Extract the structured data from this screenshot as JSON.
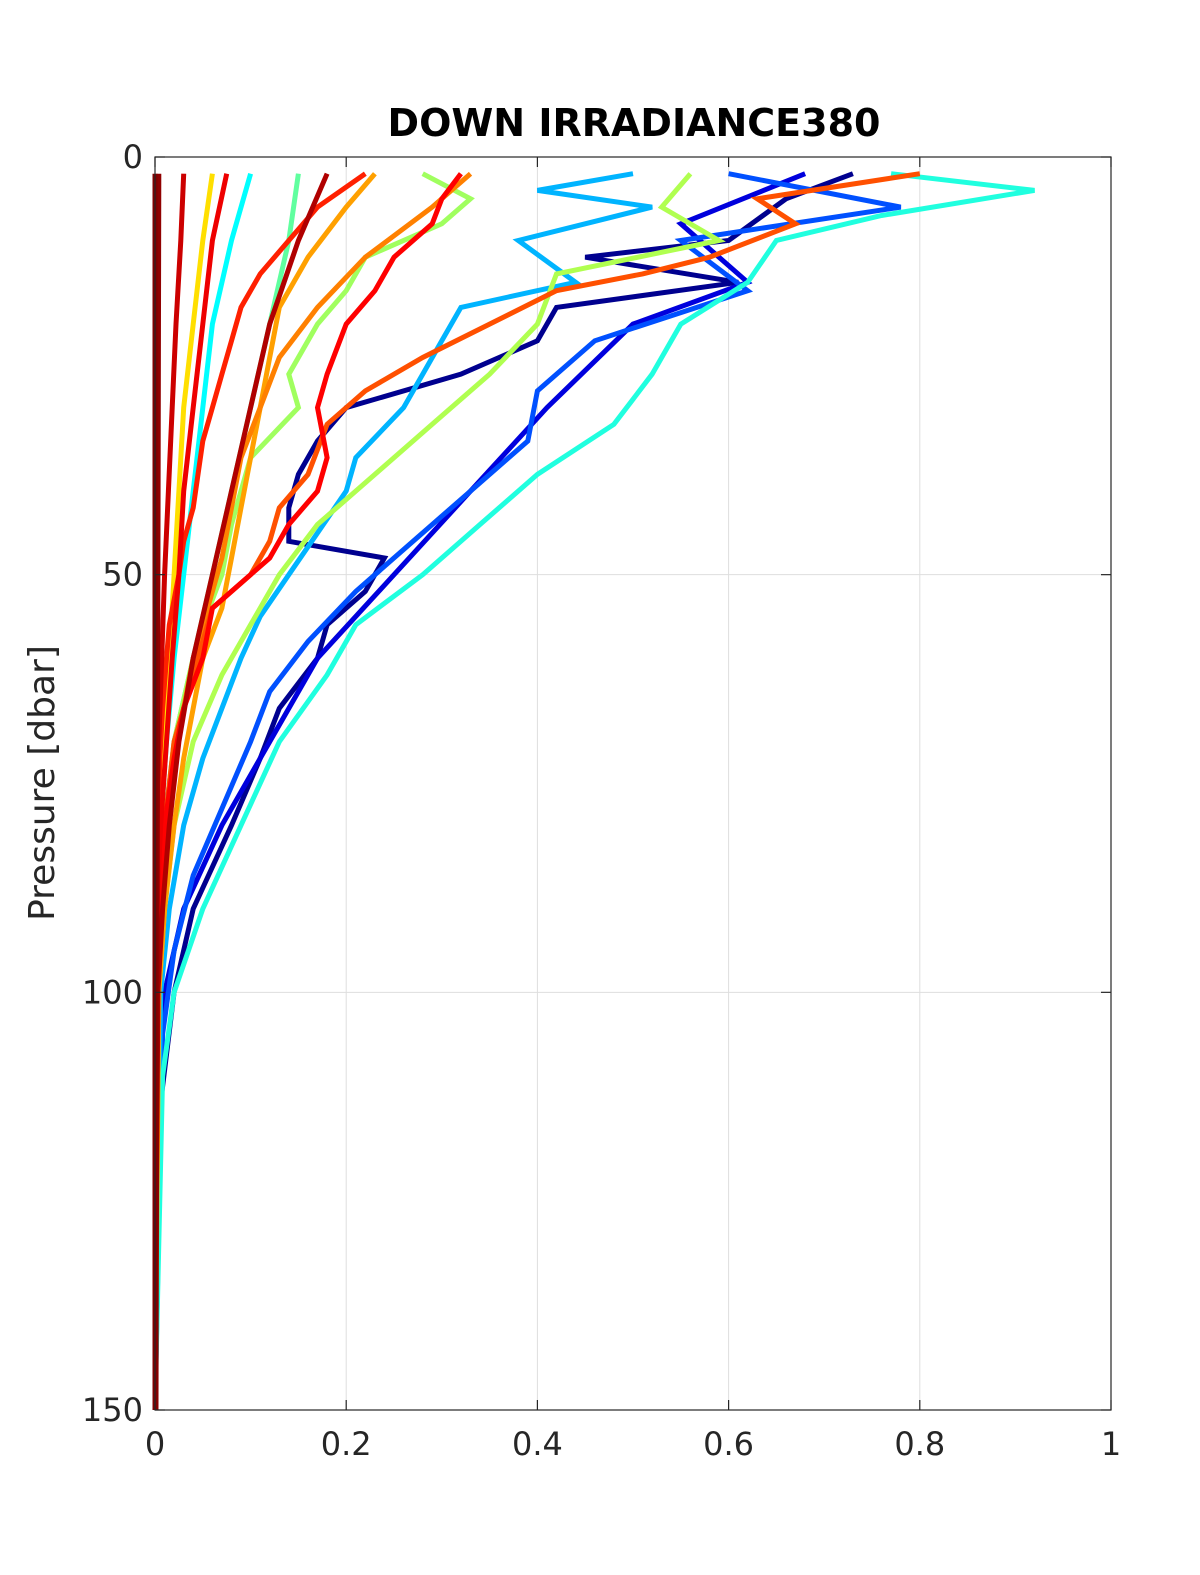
{
  "chart_data": {
    "type": "line",
    "title": "DOWN IRRADIANCE380",
    "xlabel": "",
    "ylabel": "Pressure [dbar]",
    "xlim": [
      0,
      1
    ],
    "ylim": [
      0,
      150
    ],
    "y_reversed": true,
    "grid": true,
    "xticks": [
      0,
      0.2,
      0.4,
      0.6,
      0.8,
      1
    ],
    "xtick_labels": [
      "0",
      "0.2",
      "0.4",
      "0.6",
      "0.8",
      "1"
    ],
    "yticks": [
      0,
      50,
      100,
      150
    ],
    "ytick_labels": [
      "0",
      "50",
      "100",
      "150"
    ],
    "series": [
      {
        "color": "#00008f",
        "p": [
          2,
          5,
          10,
          12,
          15,
          18,
          22,
          26,
          30,
          34,
          38,
          42,
          46,
          48,
          52,
          56,
          60,
          66,
          72,
          80,
          90,
          100,
          115,
          150
        ],
        "v": [
          0.73,
          0.66,
          0.6,
          0.45,
          0.61,
          0.42,
          0.4,
          0.32,
          0.2,
          0.17,
          0.15,
          0.14,
          0.14,
          0.24,
          0.22,
          0.18,
          0.17,
          0.13,
          0.11,
          0.08,
          0.04,
          0.02,
          0.004,
          0.0
        ]
      },
      {
        "color": "#0000dd",
        "p": [
          2,
          8,
          15,
          20,
          30,
          40,
          50,
          60,
          70,
          80,
          90,
          100,
          110,
          150
        ],
        "v": [
          0.68,
          0.55,
          0.62,
          0.5,
          0.41,
          0.33,
          0.25,
          0.17,
          0.12,
          0.07,
          0.03,
          0.01,
          0.004,
          0.0
        ]
      },
      {
        "color": "#0050ff",
        "p": [
          2,
          6,
          10,
          16,
          22,
          28,
          34,
          40,
          46,
          52,
          58,
          64,
          70,
          78,
          86,
          95,
          105,
          150
        ],
        "v": [
          0.6,
          0.78,
          0.55,
          0.62,
          0.46,
          0.4,
          0.39,
          0.33,
          0.27,
          0.21,
          0.16,
          0.12,
          0.1,
          0.07,
          0.04,
          0.02,
          0.008,
          0.0
        ]
      },
      {
        "color": "#00b4ff",
        "p": [
          2,
          4,
          6,
          10,
          15,
          18,
          22,
          26,
          30,
          36,
          40,
          45,
          50,
          55,
          60,
          66,
          72,
          80,
          90,
          100,
          150
        ],
        "v": [
          0.5,
          0.4,
          0.52,
          0.38,
          0.44,
          0.32,
          0.3,
          0.28,
          0.26,
          0.21,
          0.2,
          0.17,
          0.14,
          0.11,
          0.09,
          0.07,
          0.05,
          0.03,
          0.015,
          0.006,
          0.0
        ]
      },
      {
        "color": "#20ffdf",
        "p": [
          2,
          4,
          7,
          10,
          15,
          20,
          26,
          32,
          38,
          44,
          50,
          56,
          62,
          70,
          80,
          90,
          100,
          110,
          150
        ],
        "v": [
          0.77,
          0.92,
          0.76,
          0.65,
          0.62,
          0.55,
          0.52,
          0.48,
          0.4,
          0.34,
          0.28,
          0.21,
          0.18,
          0.13,
          0.09,
          0.05,
          0.02,
          0.008,
          0.0
        ]
      },
      {
        "color": "#00ffff",
        "p": [
          2,
          10,
          20,
          30,
          40,
          50,
          60,
          70,
          80,
          90,
          100,
          150
        ],
        "v": [
          0.1,
          0.08,
          0.06,
          0.05,
          0.04,
          0.03,
          0.02,
          0.012,
          0.006,
          0.003,
          0.001,
          0.0
        ]
      },
      {
        "color": "#60ff9f",
        "p": [
          2,
          10,
          20,
          30,
          40,
          50,
          60,
          70,
          80,
          90,
          100,
          150
        ],
        "v": [
          0.15,
          0.14,
          0.12,
          0.1,
          0.08,
          0.06,
          0.04,
          0.02,
          0.01,
          0.005,
          0.002,
          0.0
        ]
      },
      {
        "color": "#a0ff5f",
        "p": [
          2,
          5,
          8,
          12,
          16,
          20,
          26,
          30,
          36,
          40,
          44,
          50,
          56,
          60,
          70,
          80,
          90,
          100,
          150
        ],
        "v": [
          0.28,
          0.33,
          0.3,
          0.22,
          0.2,
          0.17,
          0.14,
          0.15,
          0.1,
          0.09,
          0.08,
          0.07,
          0.05,
          0.04,
          0.02,
          0.01,
          0.005,
          0.002,
          0.0
        ]
      },
      {
        "color": "#b0ff50",
        "p": [
          2,
          6,
          10,
          14,
          20,
          26,
          32,
          38,
          44,
          50,
          56,
          62,
          70,
          80,
          90,
          100,
          150
        ],
        "v": [
          0.56,
          0.53,
          0.59,
          0.42,
          0.4,
          0.35,
          0.29,
          0.23,
          0.17,
          0.13,
          0.1,
          0.07,
          0.04,
          0.02,
          0.01,
          0.004,
          0.0
        ]
      },
      {
        "color": "#ffdf00",
        "p": [
          2,
          10,
          20,
          30,
          40,
          50,
          60,
          70,
          80,
          90,
          150
        ],
        "v": [
          0.06,
          0.05,
          0.04,
          0.03,
          0.025,
          0.02,
          0.015,
          0.01,
          0.005,
          0.002,
          0.0
        ]
      },
      {
        "color": "#ffa000",
        "p": [
          2,
          6,
          12,
          18,
          24,
          30,
          36,
          42,
          48,
          54,
          60,
          66,
          72,
          80,
          90,
          100,
          150
        ],
        "v": [
          0.23,
          0.2,
          0.16,
          0.13,
          0.12,
          0.11,
          0.1,
          0.09,
          0.08,
          0.07,
          0.05,
          0.04,
          0.03,
          0.02,
          0.01,
          0.004,
          0.0
        ]
      },
      {
        "color": "#ff8000",
        "p": [
          2,
          6,
          12,
          18,
          24,
          30,
          36,
          42,
          48,
          52,
          56,
          60,
          66,
          72,
          80,
          90,
          100,
          150
        ],
        "v": [
          0.33,
          0.29,
          0.22,
          0.17,
          0.13,
          0.11,
          0.09,
          0.08,
          0.07,
          0.06,
          0.05,
          0.04,
          0.03,
          0.02,
          0.01,
          0.005,
          0.002,
          0.0
        ]
      },
      {
        "color": "#ff5000",
        "p": [
          2,
          5,
          8,
          12,
          14,
          16,
          20,
          24,
          28,
          32,
          38,
          42,
          46,
          50,
          54,
          58,
          62,
          70,
          80,
          90,
          100,
          150
        ],
        "v": [
          0.8,
          0.63,
          0.67,
          0.58,
          0.51,
          0.42,
          0.35,
          0.28,
          0.22,
          0.18,
          0.16,
          0.13,
          0.12,
          0.1,
          0.06,
          0.05,
          0.04,
          0.02,
          0.01,
          0.005,
          0.002,
          0.0
        ]
      },
      {
        "color": "#ff2000",
        "p": [
          2,
          6,
          10,
          14,
          18,
          22,
          26,
          30,
          34,
          38,
          42,
          46,
          50,
          53,
          56,
          60,
          66,
          72,
          80,
          90,
          100,
          150
        ],
        "v": [
          0.22,
          0.17,
          0.14,
          0.11,
          0.09,
          0.08,
          0.07,
          0.06,
          0.05,
          0.045,
          0.04,
          0.03,
          0.025,
          0.02,
          0.015,
          0.012,
          0.008,
          0.005,
          0.003,
          0.001,
          0.0,
          0.0
        ]
      },
      {
        "color": "#ff0000",
        "p": [
          2,
          5,
          8,
          12,
          16,
          20,
          26,
          30,
          36,
          40,
          44,
          48,
          54,
          60,
          66,
          72,
          80,
          90,
          100,
          150
        ],
        "v": [
          0.32,
          0.3,
          0.29,
          0.25,
          0.23,
          0.2,
          0.18,
          0.17,
          0.18,
          0.17,
          0.14,
          0.12,
          0.06,
          0.05,
          0.03,
          0.02,
          0.01,
          0.005,
          0.002,
          0.0
        ]
      },
      {
        "color": "#ee0000",
        "p": [
          2,
          10,
          20,
          30,
          40,
          50,
          60,
          70,
          80,
          90,
          150
        ],
        "v": [
          0.075,
          0.06,
          0.05,
          0.04,
          0.03,
          0.025,
          0.018,
          0.012,
          0.006,
          0.002,
          0.0
        ]
      },
      {
        "color": "#cc0000",
        "p": [
          2,
          10,
          20,
          30,
          40,
          50,
          60,
          70,
          80,
          90,
          150
        ],
        "v": [
          0.03,
          0.027,
          0.022,
          0.018,
          0.014,
          0.01,
          0.007,
          0.004,
          0.002,
          0.001,
          0.0
        ]
      },
      {
        "color": "#b00000",
        "p": [
          2,
          10,
          20,
          30,
          40,
          50,
          60,
          70,
          80,
          90,
          100,
          150
        ],
        "v": [
          0.18,
          0.15,
          0.12,
          0.1,
          0.08,
          0.06,
          0.04,
          0.025,
          0.015,
          0.008,
          0.003,
          0.0
        ]
      },
      {
        "color": "#900000",
        "p": [
          2,
          50,
          100,
          150
        ],
        "v": [
          0.004,
          0.003,
          0.002,
          0.001
        ]
      },
      {
        "color": "#800000",
        "p": [
          2,
          150
        ],
        "v": [
          0.0,
          0.0
        ]
      }
    ]
  }
}
